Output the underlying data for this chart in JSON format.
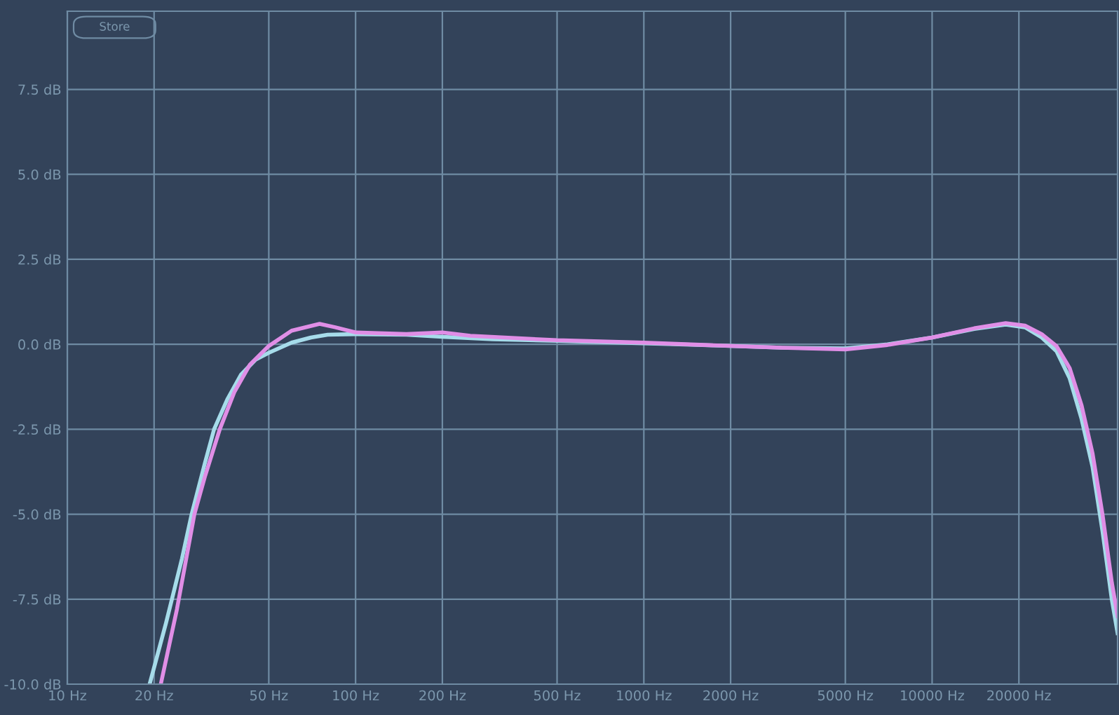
{
  "chart_data": {
    "type": "line",
    "log": "x",
    "grid": true,
    "legend": false,
    "marker": "none",
    "line_style": "solid",
    "xlim": [
      10,
      44000
    ],
    "ylim": [
      -10,
      9.8
    ],
    "xticks": [
      {
        "value": 10,
        "label": "10 Hz"
      },
      {
        "value": 20,
        "label": "20 Hz"
      },
      {
        "value": 50,
        "label": "50 Hz"
      },
      {
        "value": 100,
        "label": "100 Hz"
      },
      {
        "value": 200,
        "label": "200 Hz"
      },
      {
        "value": 500,
        "label": "500 Hz"
      },
      {
        "value": 1000,
        "label": "1000 Hz"
      },
      {
        "value": 2000,
        "label": "2000 Hz"
      },
      {
        "value": 5000,
        "label": "5000 Hz"
      },
      {
        "value": 10000,
        "label": "10000 Hz"
      },
      {
        "value": 20000,
        "label": "20000 Hz"
      }
    ],
    "yticks": [
      {
        "value": -10,
        "label": "-10.0 dB"
      },
      {
        "value": -7.5,
        "label": "-7.5 dB"
      },
      {
        "value": -5,
        "label": "-5.0 dB"
      },
      {
        "value": -2.5,
        "label": "-2.5 dB"
      },
      {
        "value": 0,
        "label": "0.0 dB"
      },
      {
        "value": 2.5,
        "label": "2.5 dB"
      },
      {
        "value": 5,
        "label": "5.0 dB"
      },
      {
        "value": 7.5,
        "label": "7.5 dB"
      }
    ],
    "annotations": [
      "Store"
    ],
    "series": [
      {
        "color": "#a6dcea",
        "x": [
          19.3,
          22,
          25,
          27,
          30,
          32.3,
          36,
          40,
          45,
          50,
          60,
          70,
          80,
          100,
          150,
          200,
          300,
          500,
          1000,
          2000,
          3000,
          5000,
          7000,
          10000,
          14000,
          18000,
          21000,
          24000,
          27000,
          30000,
          33000,
          36000,
          39000,
          42000,
          44000
        ],
        "values": [
          -10,
          -8.2,
          -6.3,
          -5,
          -3.5,
          -2.5,
          -1.6,
          -0.9,
          -0.45,
          -0.25,
          0.05,
          0.2,
          0.28,
          0.3,
          0.28,
          0.22,
          0.15,
          0.1,
          0.03,
          -0.05,
          -0.1,
          -0.12,
          0.0,
          0.2,
          0.45,
          0.58,
          0.5,
          0.2,
          -0.2,
          -1.0,
          -2.2,
          -3.6,
          -5.5,
          -7.5,
          -8.5
        ]
      },
      {
        "color": "#e08ee6",
        "x": [
          21.1,
          24,
          27.6,
          30,
          33.8,
          38,
          43,
          50,
          60,
          75,
          85,
          100,
          150,
          200,
          250,
          500,
          1000,
          2000,
          3000,
          5000,
          7000,
          10000,
          14000,
          18000,
          21000,
          24000,
          27000,
          30000,
          33000,
          36000,
          39000,
          42000,
          44000
        ],
        "values": [
          -10,
          -7.8,
          -5,
          -3.9,
          -2.5,
          -1.4,
          -0.6,
          -0.05,
          0.4,
          0.6,
          0.5,
          0.35,
          0.3,
          0.35,
          0.25,
          0.12,
          0.05,
          -0.05,
          -0.1,
          -0.15,
          -0.02,
          0.2,
          0.47,
          0.62,
          0.55,
          0.3,
          -0.05,
          -0.7,
          -1.8,
          -3.2,
          -5,
          -7,
          -8
        ]
      }
    ]
  }
}
